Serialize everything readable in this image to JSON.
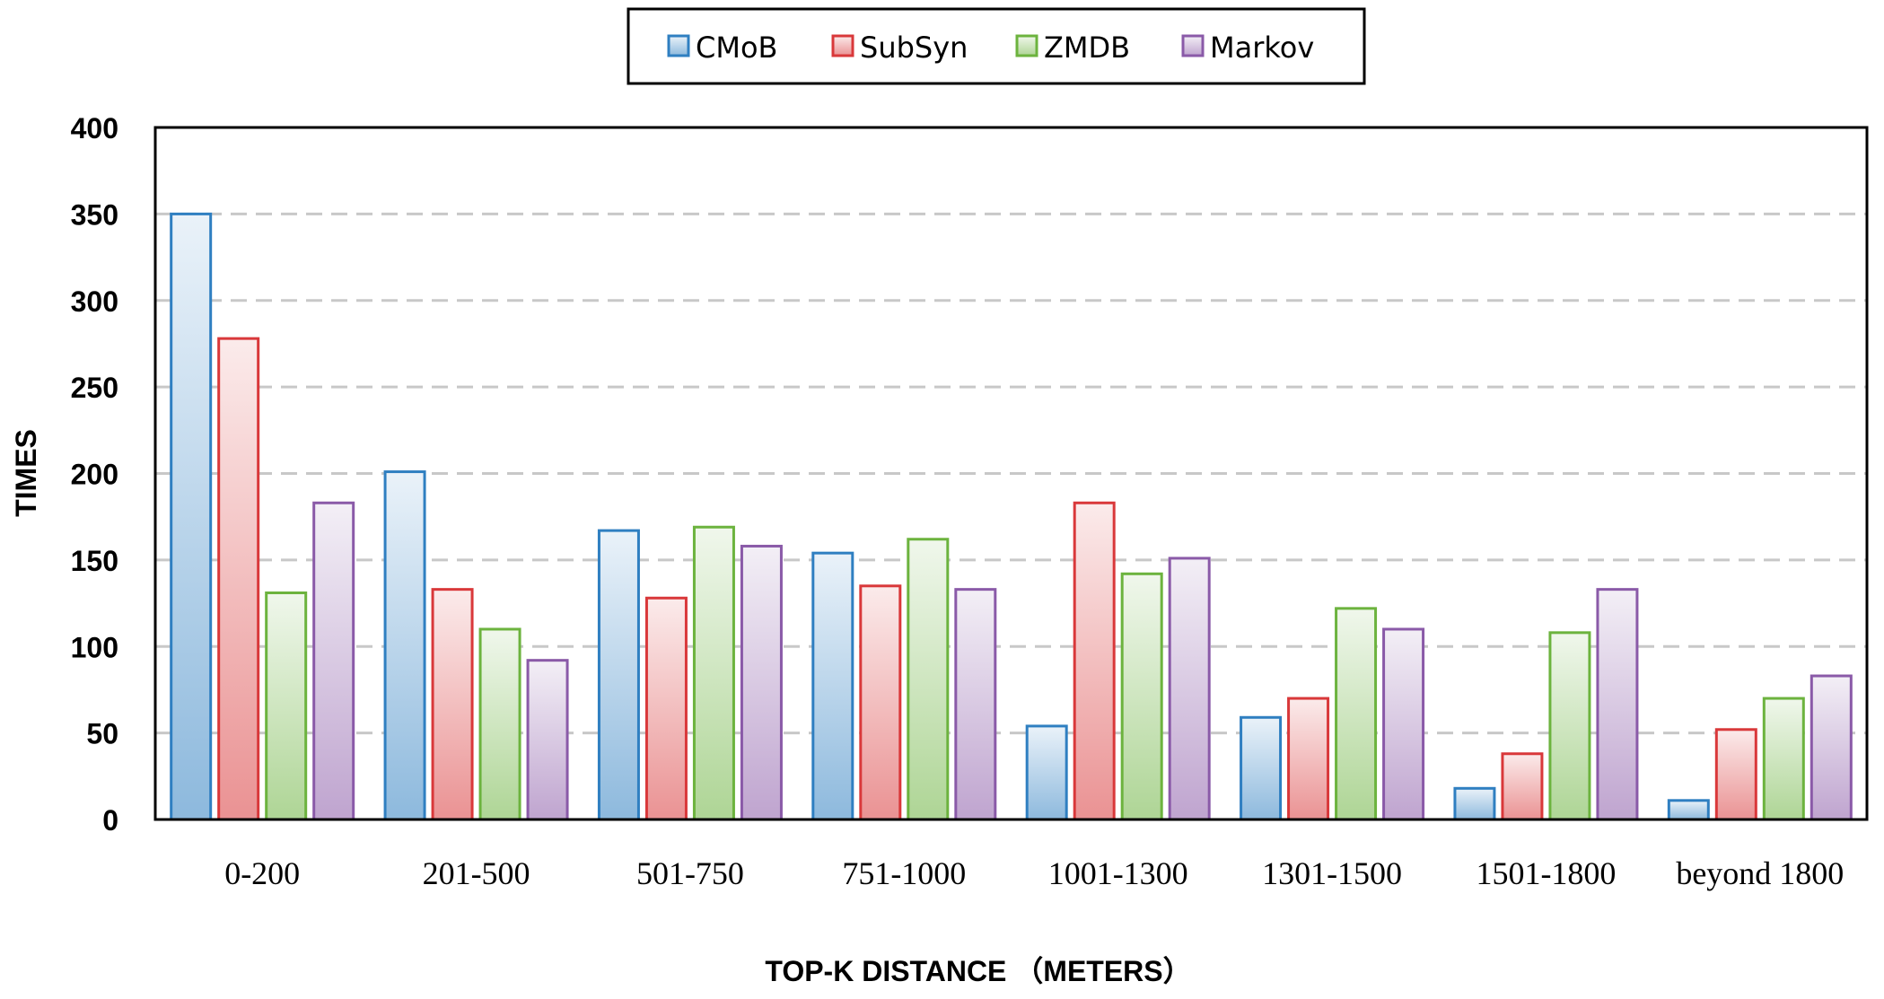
{
  "chart_data": {
    "type": "bar",
    "title": "",
    "xlabel": "TOP-K DISTANCE （METERS）",
    "ylabel": "TIMES",
    "ylim": [
      0,
      400
    ],
    "yticks": [
      "0",
      "50",
      "100",
      "150",
      "200",
      "250",
      "300",
      "350",
      "400"
    ],
    "grid": true,
    "legend_position": "top-center",
    "categories": [
      "0-200",
      "201-500",
      "501-750",
      "751-1000",
      "1001-1300",
      "1301-1500",
      "1501-1800",
      "beyond 1800"
    ],
    "series": [
      {
        "name": "CMoB",
        "color": "#2f7fc1",
        "values": [
          350,
          201,
          167,
          154,
          54,
          59,
          18,
          11
        ]
      },
      {
        "name": "SubSyn",
        "color": "#d9383a",
        "values": [
          278,
          133,
          128,
          135,
          183,
          70,
          38,
          52
        ]
      },
      {
        "name": "ZMDB",
        "color": "#6cb33e",
        "values": [
          131,
          110,
          169,
          162,
          142,
          122,
          108,
          70
        ]
      },
      {
        "name": "Markov",
        "color": "#8a5aa8",
        "values": [
          183,
          92,
          158,
          133,
          151,
          110,
          133,
          83
        ]
      }
    ]
  }
}
